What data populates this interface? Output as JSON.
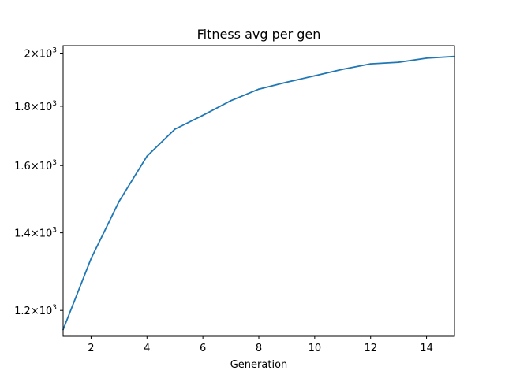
{
  "chart_data": {
    "type": "line",
    "title": "Fitness avg per gen",
    "xlabel": "Generation",
    "ylabel": "",
    "yscale": "log",
    "xlim": [
      1,
      15
    ],
    "ylim": [
      1140,
      2030
    ],
    "grid": false,
    "x_ticks": [
      2,
      4,
      6,
      8,
      10,
      12,
      14
    ],
    "x_tick_labels": [
      "2",
      "4",
      "6",
      "8",
      "10",
      "12",
      "14"
    ],
    "y_ticks": [
      1200,
      1400,
      1600,
      1800,
      2000
    ],
    "y_tick_labels": [
      {
        "mantissa": "1.2",
        "exp": "3"
      },
      {
        "mantissa": "1.4",
        "exp": "3"
      },
      {
        "mantissa": "1.6",
        "exp": "3"
      },
      {
        "mantissa": "1.8",
        "exp": "3"
      },
      {
        "mantissa": "2",
        "exp": "3"
      }
    ],
    "series": [
      {
        "color": "#1f77b4",
        "x": [
          1,
          2,
          3,
          4,
          5,
          6,
          7,
          8,
          9,
          10,
          11,
          12,
          13,
          14,
          15
        ],
        "values": [
          1155,
          1330,
          1490,
          1630,
          1720,
          1768,
          1820,
          1862,
          1888,
          1912,
          1937,
          1958,
          1964,
          1980,
          1987
        ]
      }
    ]
  }
}
